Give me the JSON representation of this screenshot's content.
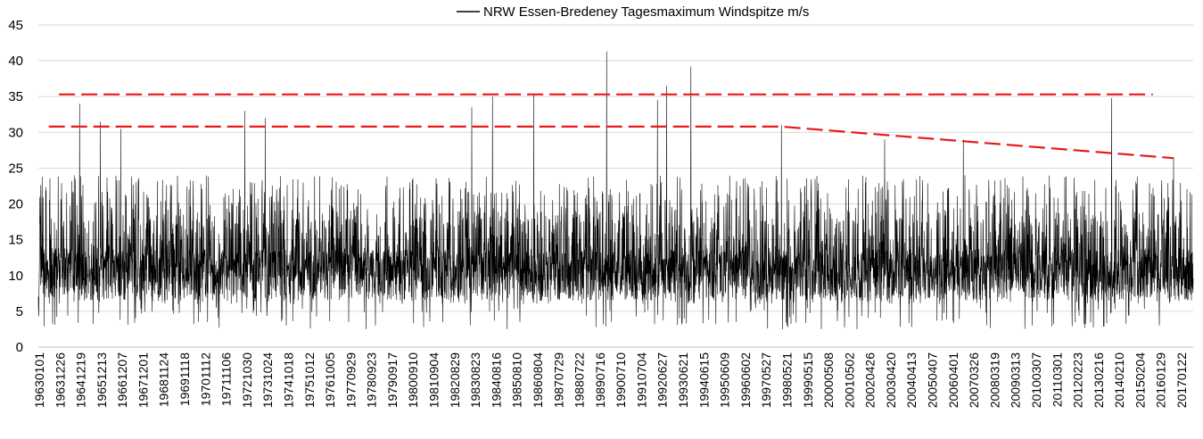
{
  "chart_data": {
    "type": "line",
    "title": "",
    "xlabel": "",
    "ylabel": "",
    "ylim": [
      0,
      45
    ],
    "yticks": [
      0,
      5,
      10,
      15,
      20,
      25,
      30,
      35,
      40,
      45
    ],
    "grid": "horizontal",
    "legend_position": "top-center",
    "x_start": "19630101",
    "x_end": "20171231",
    "x_tick_labels": [
      "19630101",
      "19631226",
      "19641219",
      "19651213",
      "19661207",
      "19671201",
      "19681124",
      "19691118",
      "19701112",
      "19711106",
      "19721030",
      "19731024",
      "19741018",
      "19751012",
      "19761005",
      "19770929",
      "19780923",
      "19790917",
      "19800910",
      "19810904",
      "19820829",
      "19830823",
      "19840816",
      "19850810",
      "19860804",
      "19870729",
      "19880722",
      "19890716",
      "19900710",
      "19910704",
      "19920627",
      "19930621",
      "19940615",
      "19950609",
      "19960602",
      "19970527",
      "19980521",
      "19990515",
      "20000508",
      "20010502",
      "20020426",
      "20030420",
      "20040413",
      "20050407",
      "20060401",
      "20070326",
      "20080319",
      "20090313",
      "20100307",
      "20110301",
      "20120223",
      "20130216",
      "20140210",
      "20150204",
      "20160129",
      "20170122"
    ],
    "series": [
      {
        "name": "NRW Essen-Bredeney Tagesmaximum Windspitze m/s",
        "color": "#000000",
        "typical_range": [
          5,
          17
        ],
        "peaks": [
          {
            "x": "19641219",
            "y": 34.0
          },
          {
            "x": "19651213",
            "y": 31.5
          },
          {
            "x": "19661207",
            "y": 30.5
          },
          {
            "x": "19721030",
            "y": 33.0
          },
          {
            "x": "19731024",
            "y": 32.0
          },
          {
            "x": "19830823",
            "y": 33.5
          },
          {
            "x": "19840816",
            "y": 35.0
          },
          {
            "x": "19860804",
            "y": 35.2
          },
          {
            "x": "19900125",
            "y": 41.3
          },
          {
            "x": "19920627",
            "y": 34.5
          },
          {
            "x": "19921201",
            "y": 36.5
          },
          {
            "x": "19940127",
            "y": 39.2
          },
          {
            "x": "19980521",
            "y": 31.0
          },
          {
            "x": "20030420",
            "y": 29.0
          },
          {
            "x": "20070118",
            "y": 29.0
          },
          {
            "x": "20140210",
            "y": 34.8
          },
          {
            "x": "20170122",
            "y": 26.5
          }
        ]
      }
    ],
    "reference_lines": [
      {
        "color": "#e8191a",
        "style": "dashed",
        "points": [
          {
            "x": "19631226",
            "y": 35.3
          },
          {
            "x": "20160129",
            "y": 35.3
          }
        ]
      },
      {
        "color": "#e8191a",
        "style": "dashed",
        "points": [
          {
            "x": "19630701",
            "y": 30.8
          },
          {
            "x": "19980521",
            "y": 30.8
          },
          {
            "x": "20170122",
            "y": 26.4
          }
        ]
      }
    ]
  }
}
